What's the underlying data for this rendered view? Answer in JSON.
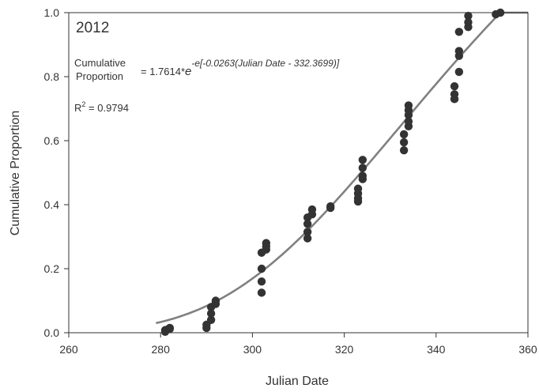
{
  "chart_data": {
    "type": "scatter",
    "annotation_year": "2012",
    "equation": {
      "lhs_line1": "Cumulative",
      "lhs_line2": "Proportion",
      "prefix": "= 1.7614*",
      "base": "e",
      "exponent": "-e[-0.0263(Julian Date - 332.3699)]",
      "r2_prefix": "R",
      "r2_sup": "2",
      "r2_value": " = 0.9794"
    },
    "xlabel": "Julian Date",
    "ylabel": "Cumulative Proportion",
    "xlim": [
      260,
      360
    ],
    "ylim": [
      0,
      1.0
    ],
    "x_ticks": [
      {
        "value": 260,
        "label": "260"
      },
      {
        "value": 280,
        "label": "280"
      },
      {
        "value": 300,
        "label": "300"
      },
      {
        "value": 320,
        "label": "320"
      },
      {
        "value": 340,
        "label": "340"
      },
      {
        "value": 360,
        "label": "360"
      }
    ],
    "y_ticks": [
      {
        "value": 0.0,
        "label": "0.0"
      },
      {
        "value": 0.2,
        "label": "0.2"
      },
      {
        "value": 0.4,
        "label": "0.4"
      },
      {
        "value": 0.6,
        "label": "0.6"
      },
      {
        "value": 0.8,
        "label": "0.8"
      },
      {
        "value": 1.0,
        "label": "1.0"
      }
    ],
    "points": [
      [
        281,
        0.003
      ],
      [
        281,
        0.008
      ],
      [
        281.5,
        0.01
      ],
      [
        282,
        0.012
      ],
      [
        282,
        0.015
      ],
      [
        290,
        0.015
      ],
      [
        290,
        0.025
      ],
      [
        291,
        0.04
      ],
      [
        291,
        0.06
      ],
      [
        291,
        0.08
      ],
      [
        292,
        0.09
      ],
      [
        292,
        0.1
      ],
      [
        302,
        0.125
      ],
      [
        302,
        0.16
      ],
      [
        302,
        0.2
      ],
      [
        302,
        0.25
      ],
      [
        303,
        0.26
      ],
      [
        303,
        0.27
      ],
      [
        303,
        0.28
      ],
      [
        312,
        0.295
      ],
      [
        312,
        0.315
      ],
      [
        312,
        0.34
      ],
      [
        312,
        0.36
      ],
      [
        313,
        0.37
      ],
      [
        313,
        0.385
      ],
      [
        317,
        0.39
      ],
      [
        317,
        0.395
      ],
      [
        323,
        0.41
      ],
      [
        323,
        0.42
      ],
      [
        323,
        0.435
      ],
      [
        323,
        0.45
      ],
      [
        324,
        0.48
      ],
      [
        324,
        0.49
      ],
      [
        324,
        0.515
      ],
      [
        324,
        0.54
      ],
      [
        333,
        0.57
      ],
      [
        333,
        0.595
      ],
      [
        333,
        0.62
      ],
      [
        334,
        0.645
      ],
      [
        334,
        0.66
      ],
      [
        334,
        0.68
      ],
      [
        334,
        0.695
      ],
      [
        334,
        0.71
      ],
      [
        344,
        0.73
      ],
      [
        344,
        0.745
      ],
      [
        344,
        0.77
      ],
      [
        345,
        0.815
      ],
      [
        345,
        0.865
      ],
      [
        345,
        0.88
      ],
      [
        345,
        0.94
      ],
      [
        347,
        0.955
      ],
      [
        347,
        0.97
      ],
      [
        347,
        0.99
      ],
      [
        353,
        0.995
      ],
      [
        354,
        1.0
      ]
    ],
    "curve": {
      "a": 1.7614,
      "b": 0.0263,
      "c": 332.3699,
      "x_from": 279,
      "x_to": 360
    },
    "colors": {
      "points": "#333333",
      "curve": "#808080",
      "axis": "#333333"
    }
  }
}
